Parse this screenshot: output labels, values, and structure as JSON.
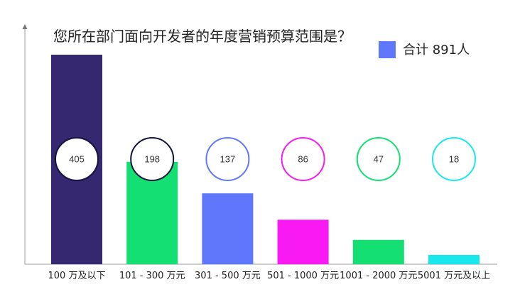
{
  "chart_data": {
    "type": "bar",
    "title": "您所在部门面向开发者的年度营销预算范围是？",
    "xlabel": "",
    "ylabel": "",
    "categories": [
      "100 万及以下",
      "101 - 300 万元",
      "301 - 500 万元",
      "501 - 1000 万元",
      "1001 - 2000 万元",
      "5001 万元及以上"
    ],
    "series": [
      {
        "name": "合计 891人",
        "values": [
          405,
          198,
          137,
          86,
          47,
          18
        ]
      }
    ],
    "bar_colors": [
      "#352770",
      "#14df73",
      "#5f77fb",
      "#f91af3",
      "#14df73",
      "#18e8ee"
    ],
    "label_circle_colors": [
      "#13123d",
      "#13123d",
      "#5f77fb",
      "#f91af3",
      "#14df73",
      "#18e8ee"
    ],
    "legend_color": "#5f77fb",
    "legend_position": "top-right",
    "ylim": [
      0,
      405
    ],
    "grid": false,
    "data_labels": "circle"
  }
}
